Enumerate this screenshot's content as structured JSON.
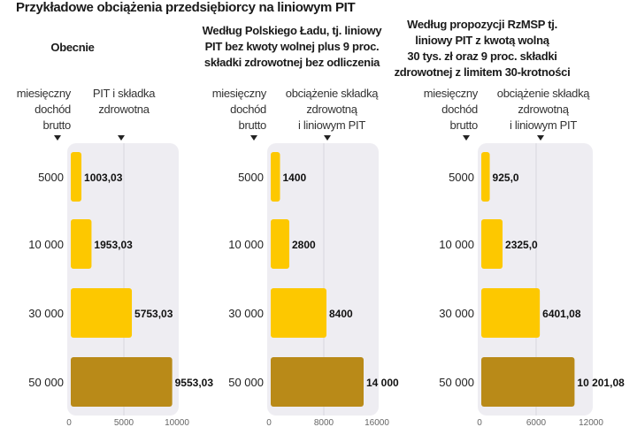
{
  "title": "Przykładowe obciążenia przedsiębiorcy na liniowym PIT",
  "colors": {
    "bar_light": "#FDC800",
    "bar_dark": "#B98A18",
    "plot_bg": "#EEEDF2"
  },
  "panels": [
    {
      "title_lines": [
        "Obecnie"
      ],
      "col1_lines": [
        "miesięczny",
        "dochód",
        "brutto"
      ],
      "col2_lines": [
        "PIT i składka",
        "zdrowotna"
      ]
    },
    {
      "title_lines": [
        "Według Polskiego Ładu, tj. liniowy",
        "PIT bez kwoty wolnej plus 9 proc.",
        "składki zdrowotnej bez odliczenia"
      ],
      "col1_lines": [
        "miesięczny",
        "dochód",
        "brutto"
      ],
      "col2_lines": [
        "obciążenie składką",
        "zdrowotną",
        "i liniowym PIT"
      ]
    },
    {
      "title_lines": [
        "Według propozycji RzMSP tj.",
        "liniowy PIT z kwotą wolną",
        "30 tys. zł oraz 9 proc. składki",
        "zdrowotnej z limitem 30-krotności"
      ],
      "col1_lines": [
        "miesięczny",
        "dochód",
        "brutto"
      ],
      "col2_lines": [
        "obciążenie składką",
        "zdrowotną",
        "i liniowym PIT"
      ]
    }
  ],
  "chart_data": [
    {
      "type": "bar",
      "orientation": "horizontal",
      "categories": [
        "5000",
        "10 000",
        "30 000",
        "50 000"
      ],
      "values": [
        1003.03,
        1953.03,
        5753.03,
        9553.03
      ],
      "data_labels": [
        "1003,03",
        "1953,03",
        "5753,03",
        "9553,03"
      ],
      "xlim": [
        0,
        10000
      ],
      "xticks": [
        "0",
        "5000",
        "10000"
      ],
      "grid": true
    },
    {
      "type": "bar",
      "orientation": "horizontal",
      "categories": [
        "5000",
        "10 000",
        "30 000",
        "50 000"
      ],
      "values": [
        1400,
        2800,
        8400,
        14000
      ],
      "data_labels": [
        "1400",
        "2800",
        "8400",
        "14 000"
      ],
      "xlim": [
        0,
        16000
      ],
      "xticks": [
        "0",
        "8000",
        "16000"
      ],
      "grid": true
    },
    {
      "type": "bar",
      "orientation": "horizontal",
      "categories": [
        "5000",
        "10 000",
        "30 000",
        "50 000"
      ],
      "values": [
        925.0,
        2325.0,
        6401.08,
        10201.08
      ],
      "data_labels": [
        "925,0",
        "2325,0",
        "6401,08",
        "10 201,08"
      ],
      "xlim": [
        0,
        12000
      ],
      "xticks": [
        "0",
        "6000",
        "12000"
      ],
      "grid": true
    }
  ]
}
